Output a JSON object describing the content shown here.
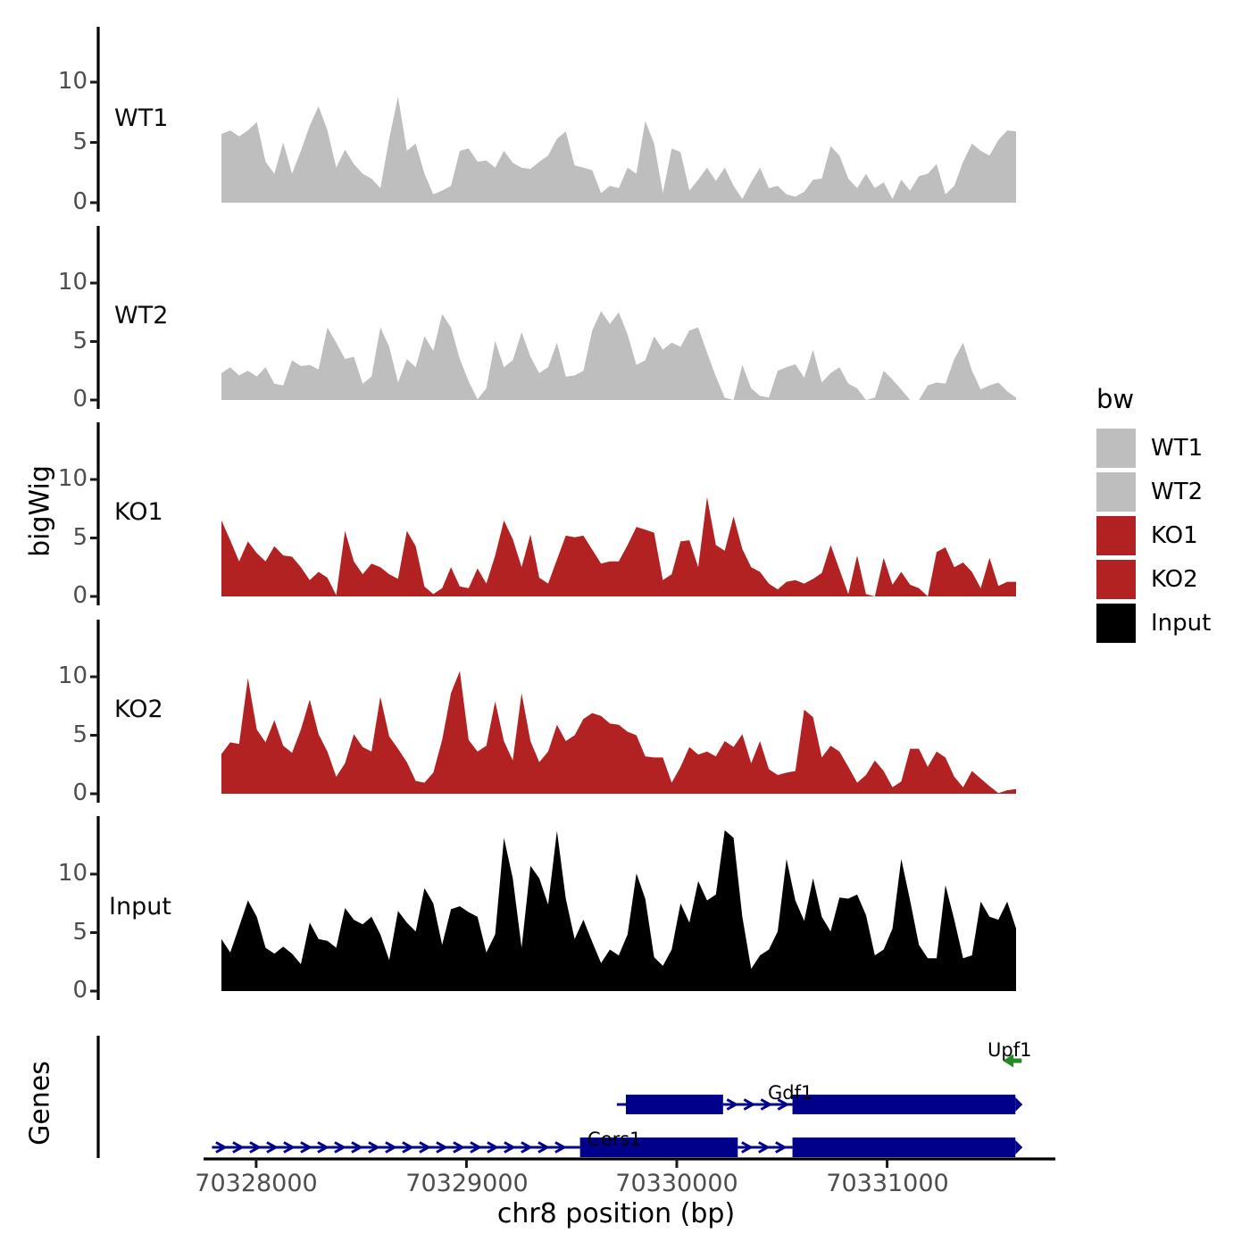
{
  "figure": {
    "y_axis_title": "bigWig",
    "panel_tick_labels": [
      "10",
      "5",
      "0"
    ],
    "x_axis": {
      "title": "chr8 position (bp)",
      "tick_labels": [
        "70328000",
        "70329000",
        "70330000",
        "70331000"
      ],
      "tick_values": [
        70328000,
        70329000,
        70330000,
        70331000
      ],
      "region_bp": [
        70327750,
        70331800
      ]
    }
  },
  "legend": {
    "title": "bw",
    "entries": [
      {
        "label": "WT1",
        "color": "#BEBEBE"
      },
      {
        "label": "WT2",
        "color": "#BEBEBE"
      },
      {
        "label": "KO1",
        "color": "#B22222"
      },
      {
        "label": "KO2",
        "color": "#B22222"
      },
      {
        "label": "Input",
        "color": "#000000"
      }
    ]
  },
  "chart_data": {
    "type": "area",
    "title": "",
    "xlabel": "chr8 position (bp)",
    "ylabel": "bigWig",
    "ylim": [
      0,
      14
    ],
    "yticks": [
      0,
      5,
      10
    ],
    "x_start_bp": 70327835,
    "x_step_bp": 42,
    "n_points": 91,
    "tracks": [
      {
        "name": "WT1",
        "color": "#BEBEBE",
        "values": [
          5.7,
          6.0,
          5.5,
          6.0,
          6.7,
          3.4,
          2.4,
          5.0,
          2.4,
          4.3,
          6.4,
          8.0,
          6.0,
          2.9,
          4.4,
          3.2,
          2.4,
          2.0,
          1.2,
          5.3,
          8.8,
          4.3,
          4.9,
          2.4,
          0.7,
          1.0,
          1.4,
          4.3,
          4.5,
          3.4,
          3.5,
          2.9,
          4.3,
          3.3,
          2.9,
          2.8,
          3.4,
          3.9,
          5.3,
          5.9,
          3.1,
          2.9,
          2.7,
          0.8,
          1.4,
          1.2,
          2.9,
          2.4,
          6.8,
          4.9,
          0.8,
          4.5,
          4.2,
          1.0,
          1.9,
          2.9,
          1.8,
          2.9,
          1.4,
          0.3,
          1.7,
          2.9,
          1.2,
          1.4,
          0.7,
          0.5,
          0.9,
          1.9,
          2.0,
          4.7,
          3.9,
          2.0,
          1.2,
          2.4,
          1.2,
          1.7,
          0.3,
          1.9,
          1.0,
          2.2,
          2.4,
          3.2,
          0.7,
          1.4,
          3.4,
          4.9,
          4.3,
          3.9,
          5.2,
          6.0,
          5.9
        ]
      },
      {
        "name": "WT2",
        "color": "#BEBEBE",
        "values": [
          2.3,
          2.8,
          2.1,
          2.5,
          2.0,
          2.8,
          1.4,
          1.25,
          3.4,
          2.9,
          3.0,
          2.6,
          6.2,
          4.9,
          3.5,
          3.7,
          1.4,
          2.0,
          6.2,
          4.55,
          1.5,
          3.5,
          2.8,
          5.45,
          4.2,
          7.35,
          6.2,
          3.5,
          1.6,
          0.05,
          1.0,
          5.05,
          2.8,
          3.4,
          5.8,
          3.7,
          2.3,
          2.8,
          4.9,
          2.0,
          2.1,
          2.5,
          5.95,
          7.6,
          6.5,
          7.5,
          5.6,
          3.0,
          3.4,
          5.45,
          4.3,
          4.9,
          4.55,
          5.95,
          6.2,
          4.05,
          2.0,
          0.2,
          0,
          3.0,
          1.0,
          0.35,
          0.2,
          2.5,
          2.8,
          3.05,
          1.9,
          4.3,
          1.5,
          2.3,
          2.8,
          1.4,
          1.0,
          0,
          0.2,
          2.5,
          1.75,
          0.9,
          0,
          0,
          1.25,
          1.5,
          1.4,
          3.5,
          4.9,
          2.5,
          0.9,
          1.25,
          1.5,
          0.75,
          0.2
        ]
      },
      {
        "name": "KO1",
        "color": "#B22222",
        "values": [
          6.5,
          4.8,
          3.0,
          4.7,
          3.7,
          3.0,
          4.3,
          3.5,
          3.4,
          2.5,
          1.4,
          2.1,
          1.6,
          0.1,
          5.6,
          3.0,
          1.9,
          2.8,
          2.5,
          1.9,
          1.5,
          5.6,
          4.3,
          0.85,
          0.2,
          0.7,
          2.5,
          0.85,
          0.7,
          2.4,
          1.1,
          3.5,
          6.5,
          4.9,
          2.5,
          5.3,
          1.6,
          1.1,
          3.15,
          5.2,
          5.05,
          5.2,
          4.0,
          2.8,
          3.0,
          3.0,
          4.4,
          5.95,
          5.7,
          5.45,
          1.4,
          1.9,
          4.7,
          4.8,
          2.5,
          8.5,
          4.4,
          3.9,
          6.85,
          4.05,
          2.5,
          2.1,
          1.1,
          0.6,
          1.25,
          1.4,
          1.1,
          1.5,
          2.0,
          4.4,
          2.3,
          0.2,
          3.5,
          0.2,
          0,
          3.3,
          1.0,
          2.1,
          1.0,
          0.7,
          0,
          3.8,
          4.2,
          2.5,
          2.9,
          2.1,
          0.7,
          3.3,
          0.9,
          1.25,
          1.25
        ]
      },
      {
        "name": "KO2",
        "color": "#B22222",
        "values": [
          3.4,
          4.4,
          4.25,
          9.9,
          5.5,
          4.4,
          6.3,
          4.1,
          3.5,
          5.5,
          8.05,
          5.1,
          3.6,
          1.45,
          2.6,
          5.1,
          4.0,
          3.6,
          8.3,
          4.9,
          3.85,
          2.7,
          1.1,
          0.95,
          1.8,
          4.6,
          8.6,
          10.5,
          4.6,
          3.6,
          4.1,
          7.9,
          4.5,
          2.85,
          8.6,
          4.5,
          2.7,
          3.6,
          5.9,
          4.5,
          5.0,
          6.4,
          6.9,
          6.65,
          6.0,
          5.9,
          5.3,
          5.0,
          3.2,
          3.1,
          3.1,
          0.95,
          2.3,
          4.0,
          3.35,
          3.6,
          3.2,
          4.5,
          4.0,
          5.1,
          2.6,
          4.5,
          2.1,
          1.6,
          1.8,
          1.95,
          7.2,
          6.55,
          3.1,
          4.1,
          3.6,
          2.3,
          0.95,
          1.6,
          2.85,
          1.95,
          0.55,
          1.05,
          3.85,
          3.85,
          2.3,
          3.6,
          3.1,
          1.45,
          0.55,
          1.95,
          1.3,
          0.65,
          0.05,
          0.3,
          0.4
        ]
      },
      {
        "name": "Input",
        "color": "#000000",
        "values": [
          4.45,
          3.3,
          5.5,
          7.75,
          6.35,
          3.7,
          3.2,
          3.8,
          3.2,
          2.3,
          5.85,
          4.45,
          4.3,
          3.7,
          7.1,
          6.1,
          5.7,
          6.35,
          4.85,
          2.65,
          6.85,
          5.85,
          5.1,
          8.8,
          7.5,
          3.95,
          7.0,
          7.25,
          6.75,
          6.35,
          3.3,
          4.85,
          13.1,
          9.65,
          3.7,
          10.7,
          9.65,
          7.4,
          13.7,
          7.9,
          4.45,
          6.1,
          4.2,
          2.4,
          3.55,
          3.05,
          4.85,
          10.05,
          7.9,
          2.9,
          2.15,
          3.55,
          7.5,
          5.85,
          9.4,
          7.75,
          8.25,
          13.75,
          13.1,
          6.35,
          1.9,
          3.05,
          3.55,
          5.1,
          11.3,
          7.75,
          6.0,
          9.65,
          6.35,
          5.1,
          8.0,
          7.9,
          8.25,
          6.5,
          3.05,
          3.55,
          5.35,
          11.3,
          7.75,
          3.95,
          2.8,
          2.8,
          9.05,
          6.1,
          2.8,
          3.05,
          7.65,
          6.35,
          6.1,
          7.65,
          5.35
        ]
      }
    ]
  },
  "genes": {
    "axis_label": "Genes",
    "gene_color": "#00008B",
    "items": [
      {
        "label": "Upf1",
        "strand": "-",
        "color": "#228B22",
        "row": 0,
        "kind": "arrow",
        "start": 70331550,
        "end": 70331640
      },
      {
        "label": "Gdf1",
        "strand": "+",
        "color": "#00008B",
        "row": 1,
        "kind": "model",
        "segments": [
          {
            "kind": "arrow-line",
            "start": 70329715,
            "end": 70329758
          },
          {
            "kind": "exon",
            "start": 70329758,
            "end": 70330220
          },
          {
            "kind": "arrow-line",
            "start": 70330220,
            "end": 70330550
          },
          {
            "kind": "exon",
            "start": 70330550,
            "end": 70331610,
            "tip": true
          }
        ]
      },
      {
        "label": "Cers1",
        "strand": "+",
        "color": "#00008B",
        "row": 2,
        "kind": "model",
        "segments": [
          {
            "kind": "arrow-line",
            "start": 70327790,
            "end": 70329540
          },
          {
            "kind": "exon",
            "start": 70329540,
            "end": 70330290
          },
          {
            "kind": "arrow-line",
            "start": 70330290,
            "end": 70330550
          },
          {
            "kind": "exon",
            "start": 70330550,
            "end": 70331610,
            "tip": true
          }
        ]
      }
    ]
  }
}
